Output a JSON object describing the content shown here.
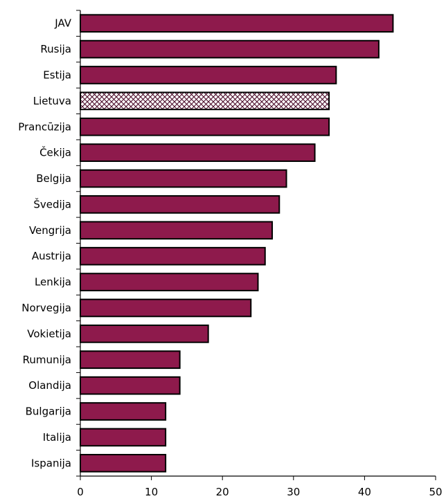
{
  "chart_data": {
    "type": "bar",
    "orientation": "horizontal",
    "categories": [
      "JAV",
      "Rusija",
      "Estija",
      "Lietuva",
      "Prancūzija",
      "Čekija",
      "Belgija",
      "Švedija",
      "Vengrija",
      "Austrija",
      "Lenkija",
      "Norvegija",
      "Vokietija",
      "Rumunija",
      "Olandija",
      "Bulgarija",
      "Italija",
      "Ispanija"
    ],
    "values": [
      44,
      42,
      36,
      35,
      35,
      33,
      29,
      28,
      27,
      26,
      25,
      24,
      18,
      14,
      14,
      12,
      12,
      12
    ],
    "highlight_category": "Lietuva",
    "xlim": [
      0,
      50
    ],
    "xticks": [
      0,
      10,
      20,
      30,
      40,
      50
    ],
    "title": "",
    "xlabel": "",
    "ylabel": "",
    "grid": false,
    "colors": {
      "bar": "#8e1a4c",
      "edge": "#000000",
      "highlight_pattern": "#4a0a28"
    }
  }
}
